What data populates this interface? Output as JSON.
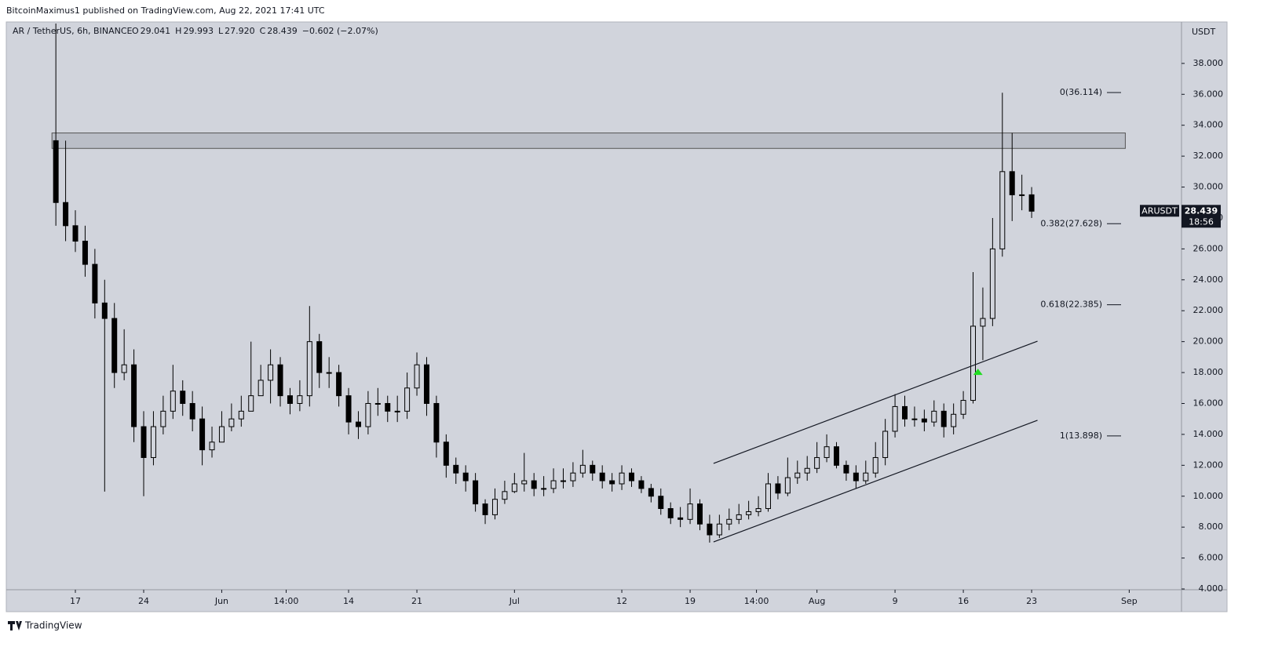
{
  "published": "BitcoinMaximus1 published on TradingView.com, Aug 22, 2021 17:41 UTC",
  "brand": "TradingView",
  "chart_data": {
    "type": "candlestick",
    "symbol": "AR / TetherUS, 6h, BINANCE",
    "ohlc_header": [
      {
        "key": "O",
        "value": "29.041"
      },
      {
        "key": "H",
        "value": "29.993"
      },
      {
        "key": "L",
        "value": "27.920"
      },
      {
        "key": "C",
        "value": "28.439"
      }
    ],
    "change": "−0.602 (−2.07%)",
    "currency": "USDT",
    "x": [
      -2,
      -1,
      0,
      1,
      2,
      3,
      4,
      5,
      6,
      7,
      8,
      9,
      10,
      11,
      12,
      13,
      14,
      15,
      16,
      17,
      18,
      19,
      20,
      21,
      22,
      23,
      24,
      25,
      26,
      27,
      28,
      29,
      30,
      31,
      32,
      33,
      34,
      35,
      36,
      37,
      38,
      39,
      40,
      41,
      42,
      43,
      44,
      45,
      46,
      47,
      48,
      49,
      50,
      51,
      52,
      53,
      54,
      55,
      56,
      57,
      58,
      59,
      60,
      61,
      62,
      63,
      64,
      65,
      66,
      67,
      68,
      69,
      70,
      71,
      72,
      73,
      74,
      75,
      76,
      77,
      78,
      79,
      80,
      81,
      82,
      83,
      84,
      85,
      86,
      87,
      88,
      89,
      90,
      91,
      92,
      93,
      94,
      95,
      96,
      97,
      98
    ],
    "open": [
      33,
      29,
      27.5,
      26.5,
      25,
      22.5,
      21.5,
      18,
      18.5,
      14.5,
      12.5,
      14.5,
      15.5,
      16.8,
      16,
      15,
      13,
      13.5,
      14.5,
      15,
      15.5,
      16.5,
      17.5,
      18.5,
      16.5,
      16,
      16.5,
      20,
      18,
      18,
      16.5,
      14.8,
      14.5,
      16,
      16,
      15.5,
      15.5,
      17,
      18.5,
      16,
      13.5,
      12,
      11.5,
      11,
      9.5,
      8.8,
      9.8,
      10.3,
      10.8,
      11,
      10.5,
      10.5,
      11,
      11,
      11.5,
      12,
      11.5,
      11,
      10.8,
      11.5,
      11,
      10.5,
      10,
      9.2,
      8.6,
      8.5,
      9.5,
      8.2,
      7.5,
      8.2,
      8.5,
      8.8,
      9,
      9.2,
      10.8,
      10.2,
      11.2,
      11.5,
      11.8,
      12.5,
      13.2,
      12,
      11.5,
      11,
      11.5,
      12.5,
      14.2,
      15.8,
      15,
      15,
      14.8,
      15.5,
      14.5,
      15.3,
      16.2,
      21,
      21.5,
      26,
      31,
      29.5,
      29.5
    ],
    "high": [
      42,
      33,
      28.5,
      27.5,
      26,
      24,
      22.5,
      20.8,
      19.5,
      15.5,
      15.5,
      16.5,
      18.5,
      17.5,
      16.8,
      15.8,
      14.5,
      15.5,
      16,
      16.5,
      20,
      18.5,
      19.5,
      19,
      17,
      17.5,
      22.3,
      20.5,
      19,
      18.5,
      17,
      15.5,
      16.8,
      17,
      16.5,
      16.5,
      18,
      19.3,
      19,
      16.5,
      14,
      12.5,
      12,
      11.5,
      9.8,
      10.5,
      11,
      11.5,
      12.8,
      11.5,
      11.3,
      11.8,
      11.8,
      12.2,
      13,
      12.3,
      12,
      11.5,
      12,
      11.8,
      11.3,
      10.8,
      10.5,
      9.6,
      9.3,
      10.5,
      9.8,
      8.8,
      8.8,
      9.2,
      9.5,
      9.7,
      10,
      11.5,
      11.3,
      12.5,
      12.3,
      12.6,
      13.5,
      14,
      13.5,
      12.3,
      12,
      12.3,
      13.5,
      15,
      16.6,
      16.5,
      15.8,
      15.6,
      16.2,
      16,
      16,
      16.8,
      24.5,
      23.5,
      28,
      36.1,
      33.5,
      30.8,
      30
    ],
    "low": [
      27.5,
      26.5,
      25.8,
      24.2,
      21.5,
      10.3,
      17,
      17.5,
      13.5,
      10,
      12,
      14,
      15,
      15.2,
      14.2,
      12,
      12.5,
      13.5,
      14.2,
      14.5,
      15.5,
      16.5,
      16,
      15.8,
      15.3,
      15.5,
      15.8,
      17,
      17,
      15.8,
      14,
      13.7,
      14,
      15.2,
      14.8,
      14.8,
      15,
      16.5,
      15.2,
      12.5,
      11.2,
      10.8,
      10.3,
      9,
      8.2,
      8.5,
      9.5,
      10.2,
      10.3,
      10,
      10,
      10.2,
      10.5,
      10.6,
      11.2,
      11,
      10.5,
      10.3,
      10.4,
      10.6,
      10.2,
      9.6,
      8.8,
      8.2,
      8,
      8.2,
      7.8,
      7,
      7.3,
      7.8,
      8.2,
      8.5,
      8.7,
      9,
      9.8,
      10,
      10.8,
      11,
      11.5,
      12.2,
      11.8,
      11,
      10.5,
      10.8,
      11.2,
      12,
      13.8,
      14.5,
      14.5,
      14.2,
      14.5,
      13.8,
      14,
      15,
      16,
      18.8,
      21,
      25.5,
      27.8,
      28.5,
      28
    ],
    "close": [
      29,
      27.5,
      26.5,
      25,
      22.5,
      21.5,
      18,
      18.5,
      14.5,
      12.5,
      14.5,
      15.5,
      16.8,
      16,
      15,
      13,
      13.5,
      14.5,
      15,
      15.5,
      16.5,
      17.5,
      18.5,
      16.5,
      16,
      16.5,
      20,
      18,
      18,
      16.5,
      14.8,
      14.5,
      16,
      16,
      15.5,
      15.5,
      17,
      18.5,
      16,
      13.5,
      12,
      11.5,
      11,
      9.5,
      8.8,
      9.8,
      10.3,
      10.8,
      11,
      10.5,
      10.5,
      11,
      11,
      11.5,
      12,
      11.5,
      11,
      10.8,
      11.5,
      11,
      10.5,
      10,
      9.2,
      8.6,
      8.5,
      9.5,
      8.2,
      7.5,
      8.2,
      8.5,
      8.8,
      9,
      9.2,
      10.8,
      10.2,
      11.2,
      11.5,
      11.8,
      12.5,
      13.2,
      12,
      11.5,
      11,
      11.5,
      12.5,
      14.2,
      15.8,
      15,
      15,
      14.8,
      15.5,
      14.5,
      15.3,
      16.2,
      21,
      21.5,
      26,
      31,
      29.5,
      29.5,
      28.439
    ],
    "up_color": "#d1d4dc",
    "down_color": "#000000",
    "xlim": [
      -6.92,
      113.36
    ],
    "xticks": [
      {
        "value": 0,
        "label": "17"
      },
      {
        "value": 7,
        "label": "24"
      },
      {
        "value": 15,
        "label": "Jun"
      },
      {
        "value": 21.6,
        "label": "14:00"
      },
      {
        "value": 28,
        "label": "14"
      },
      {
        "value": 35,
        "label": "21"
      },
      {
        "value": 45,
        "label": "Jul"
      },
      {
        "value": 56,
        "label": "12"
      },
      {
        "value": 63,
        "label": "19"
      },
      {
        "value": 69.8,
        "label": "14:00"
      },
      {
        "value": 76,
        "label": "Aug"
      },
      {
        "value": 84,
        "label": "9"
      },
      {
        "value": 91,
        "label": "16"
      },
      {
        "value": 98,
        "label": "23"
      },
      {
        "value": 108,
        "label": "Sep"
      }
    ],
    "ylim": [
      3.95,
      40.58
    ],
    "yticks": [
      {
        "value": 4,
        "label": "4.000"
      },
      {
        "value": 6,
        "label": "6.000"
      },
      {
        "value": 8,
        "label": "8.000"
      },
      {
        "value": 10,
        "label": "10.000"
      },
      {
        "value": 12,
        "label": "12.000"
      },
      {
        "value": 14,
        "label": "14.000"
      },
      {
        "value": 16,
        "label": "16.000"
      },
      {
        "value": 18,
        "label": "18.000"
      },
      {
        "value": 20,
        "label": "20.000"
      },
      {
        "value": 22,
        "label": "22.000"
      },
      {
        "value": 24,
        "label": "24.000"
      },
      {
        "value": 26,
        "label": "26.000"
      },
      {
        "value": 28,
        "label": "28.000"
      },
      {
        "value": 30,
        "label": "30.000"
      },
      {
        "value": 32,
        "label": "32.000"
      },
      {
        "value": 34,
        "label": "34.000"
      },
      {
        "value": 36,
        "label": "36.000"
      },
      {
        "value": 38,
        "label": "38.000"
      }
    ],
    "fib_levels": [
      {
        "value": 36.114,
        "label": "0(36.114)"
      },
      {
        "value": 27.628,
        "label": "0.382(27.628)"
      },
      {
        "value": 22.385,
        "label": "0.618(22.385)"
      },
      {
        "value": 13.898,
        "label": "1(13.898)"
      }
    ],
    "zones": [
      {
        "x": [
          -2.4,
          107.6
        ],
        "y": [
          32.5,
          33.5
        ]
      }
    ],
    "channels": [
      {
        "x": [
          65.4,
          98.6
        ],
        "y": [
          12.12,
          20.03
        ]
      },
      {
        "x": [
          65.4,
          98.6
        ],
        "y": [
          7.04,
          14.91
        ]
      }
    ],
    "markers": [
      {
        "x": 92.5,
        "y": 18.05,
        "color": "#22dd22"
      }
    ],
    "last_price": {
      "symbol": "ARUSDT",
      "price_label": "28.439",
      "countdown": "18:56"
    }
  }
}
